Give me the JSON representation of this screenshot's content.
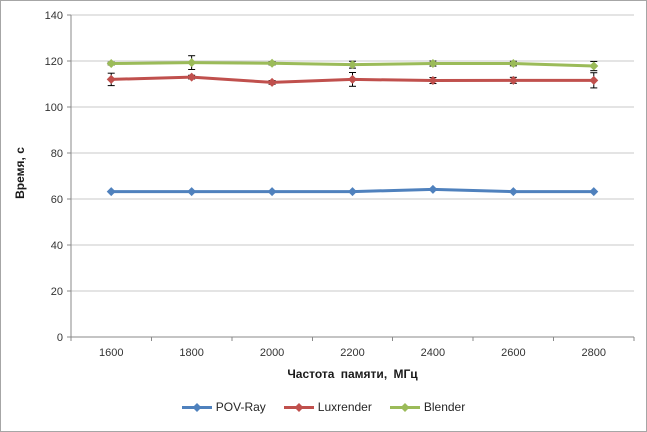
{
  "figure": {
    "background_color": "#ffffff",
    "border_color": "#a6a6a6"
  },
  "chart_data": {
    "type": "line",
    "title": "",
    "xlabel": "Частота памяти, МГц",
    "ylabel": "Время, с",
    "categories": [
      "1600",
      "1800",
      "2000",
      "2200",
      "2400",
      "2600",
      "2800"
    ],
    "series": [
      {
        "name": "POV-Ray",
        "color": "#4f81bd",
        "values": [
          63.2,
          63.2,
          63.2,
          63.2,
          64.2,
          63.2,
          63.2
        ],
        "errors": [
          0,
          0,
          0,
          0,
          0,
          0,
          0
        ]
      },
      {
        "name": "Luxrender",
        "color": "#c0504d",
        "values": [
          112.0,
          113.0,
          110.7,
          112.0,
          111.5,
          111.6,
          111.6
        ],
        "errors": [
          2.7,
          0.8,
          0.8,
          3.0,
          1.3,
          1.3,
          3.3
        ]
      },
      {
        "name": "Blender",
        "color": "#9bbb59",
        "values": [
          118.9,
          119.3,
          119.0,
          118.4,
          118.9,
          118.9,
          117.8
        ],
        "errors": [
          0.6,
          3.0,
          0.7,
          1.5,
          1.1,
          1.0,
          2.0
        ]
      }
    ],
    "ylim": [
      0,
      140
    ],
    "ytick_step": 20,
    "grid": true,
    "legend_position": "bottom",
    "marker": "diamond",
    "colors": {
      "gridline": "#c8c8c8",
      "axis": "#898989",
      "error_bar": "#000000",
      "tick_label": "#333333"
    }
  }
}
